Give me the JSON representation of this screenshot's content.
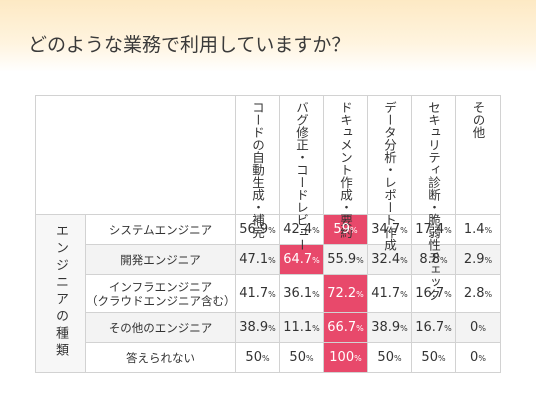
{
  "title": "どのような業務で利用していますか？",
  "chart_data": {
    "type": "table",
    "row_group_label": "エンジニアの種類",
    "columns": [
      "コードの自動生成・補完",
      "バグ修正・コードレビュー",
      "ドキュメント作成・要約",
      "データ分析・レポート作成",
      "セキュリティ診断・脆弱性チェック",
      "その他"
    ],
    "rows": [
      {
        "label": [
          "システムエンジニア"
        ],
        "values": [
          "56.9",
          "42.4",
          "59",
          "34.7",
          "17.4",
          "1.4"
        ],
        "highlight": 2
      },
      {
        "label": [
          "開発エンジニア"
        ],
        "values": [
          "47.1",
          "64.7",
          "55.9",
          "32.4",
          "8.8",
          "2.9"
        ],
        "highlight": 1
      },
      {
        "label": [
          "インフラエンジニア",
          "（クラウドエンジニア含む）"
        ],
        "values": [
          "41.7",
          "36.1",
          "72.2",
          "41.7",
          "16.7",
          "2.8"
        ],
        "highlight": 2
      },
      {
        "label": [
          "その他のエンジニア"
        ],
        "values": [
          "38.9",
          "11.1",
          "66.7",
          "38.9",
          "16.7",
          "0"
        ],
        "highlight": 2
      },
      {
        "label": [
          "答えられない"
        ],
        "values": [
          "50",
          "50",
          "100",
          "50",
          "50",
          "0"
        ],
        "highlight": 2
      }
    ],
    "unit": "%",
    "highlight_color": "#e8496b"
  }
}
